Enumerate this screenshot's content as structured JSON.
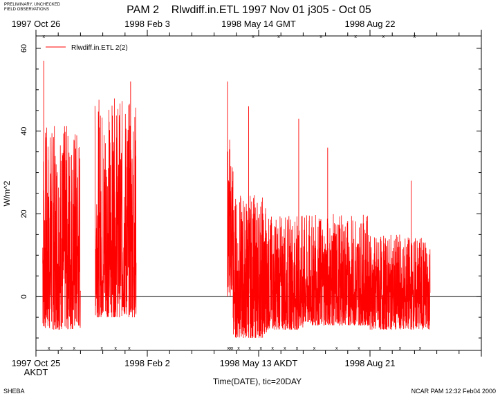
{
  "header": {
    "disclaimer_line1": "PRELIMINARY, UNCHECKED",
    "disclaimer_line2": "FIELD OBSERVATIONS"
  },
  "footer": {
    "project": "SHEBA",
    "credit": "NCAR PAM 12:32 Feb04 2000"
  },
  "colors": {
    "series": "#ff0000",
    "axis": "#000000",
    "background": "#ffffff"
  },
  "chart_data": {
    "type": "line",
    "title": "PAM 2    Rlwdiff.in.ETL 1997 Nov 01 j305 - Oct 05",
    "xlabel": "Time(DATE), tic=20DAY",
    "ylabel": "W/m^2",
    "ylim": [
      -13,
      63
    ],
    "yticks": [
      0,
      20,
      40,
      60
    ],
    "xlim_days": [
      0,
      400
    ],
    "bottom_tick_labels": [
      {
        "day": 0,
        "label": "1997 Oct 25"
      },
      {
        "day": 100,
        "label": "1998 Feb  2"
      },
      {
        "day": 200,
        "label": "1998 May 13 AKDT"
      },
      {
        "day": 300,
        "label": "1998 Aug 21"
      }
    ],
    "bottom_timezone": "AKDT",
    "top_tick_labels": [
      {
        "day": 0,
        "label": "1997 Oct 26"
      },
      {
        "day": 100,
        "label": "1998 Feb  3"
      },
      {
        "day": 200,
        "label": "1998 May 14 GMT"
      },
      {
        "day": 300,
        "label": "1998 Aug 22"
      }
    ],
    "legend": {
      "label": "Rlwdiff.in.ETL 2(2)",
      "placement": "top-left"
    },
    "zero_line": true,
    "series": [
      {
        "name": "Rlwdiff.in.ETL 2(2)",
        "color": "#ff0000",
        "segments": [
          {
            "start_day": 6,
            "end_day": 40,
            "typical_range": [
              -8,
              42
            ],
            "peak": {
              "day": 7,
              "value": 57
            }
          },
          {
            "start_day": 53,
            "end_day": 90,
            "typical_range": [
              -5,
              48
            ],
            "peak": {
              "day": 85,
              "value": 52
            }
          },
          {
            "start_day": 172,
            "end_day": 177,
            "typical_range": [
              0,
              40
            ],
            "peak": {
              "day": 172,
              "value": 52
            }
          },
          {
            "start_day": 177,
            "end_day": 207,
            "typical_range": [
              -10,
              25
            ],
            "peak": {
              "day": 191,
              "value": 46
            }
          },
          {
            "start_day": 207,
            "end_day": 240,
            "typical_range": [
              -8,
              20
            ],
            "peak": {
              "day": 236,
              "value": 43
            }
          },
          {
            "start_day": 240,
            "end_day": 300,
            "typical_range": [
              -7,
              20
            ],
            "peak": {
              "day": 262,
              "value": 36
            }
          },
          {
            "start_day": 300,
            "end_day": 354,
            "typical_range": [
              -8,
              15
            ],
            "peak": {
              "day": 337,
              "value": 28
            }
          }
        ]
      }
    ]
  }
}
